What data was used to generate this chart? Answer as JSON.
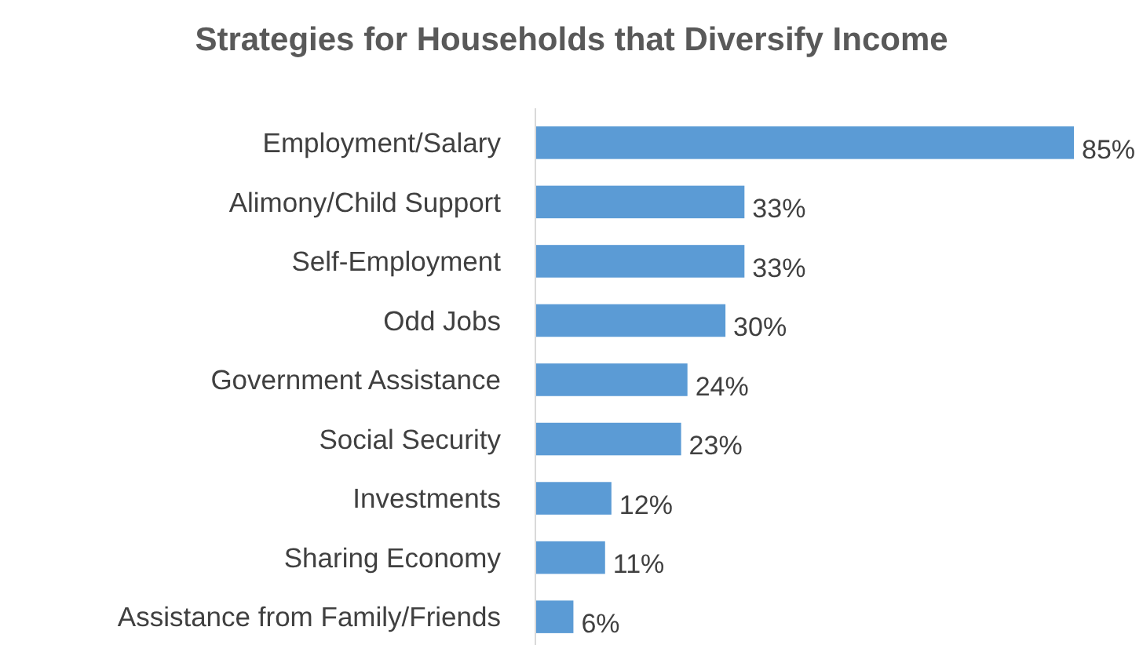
{
  "chart_data": {
    "type": "bar",
    "orientation": "horizontal",
    "title": "Strategies for Households that Diversify Income",
    "categories": [
      "Employment/Salary",
      "Alimony/Child Support",
      "Self-Employment",
      "Odd Jobs",
      "Government Assistance",
      "Social Security",
      "Investments",
      "Sharing Economy",
      "Assistance from Family/Friends"
    ],
    "values": [
      85,
      33,
      33,
      30,
      24,
      23,
      12,
      11,
      6
    ],
    "value_labels": [
      "85%",
      "33%",
      "33%",
      "30%",
      "24%",
      "23%",
      "12%",
      "11%",
      "6%"
    ],
    "color": "#5b9bd5"
  }
}
